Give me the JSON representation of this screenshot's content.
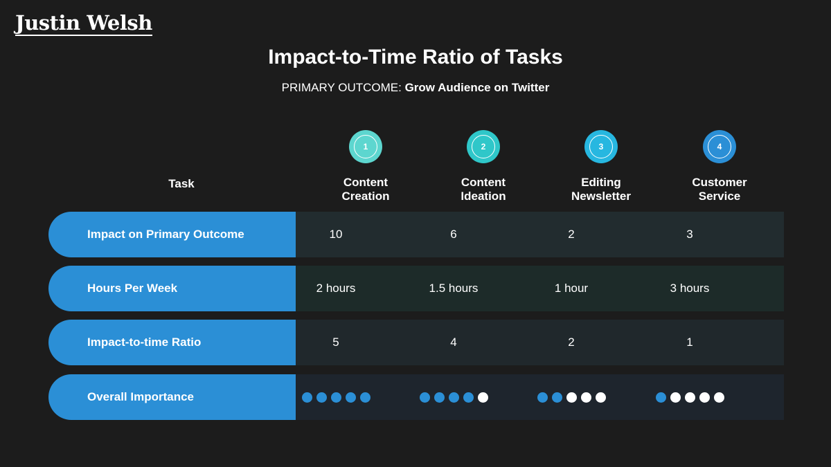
{
  "brand": {
    "logo_text": "Justin Welsh"
  },
  "header": {
    "title": "Impact-to-Time Ratio of Tasks",
    "subtitle_label": "PRIMARY OUTCOME:",
    "subtitle_value": "Grow Audience on Twitter"
  },
  "table": {
    "task_header": "Task",
    "columns": [
      {
        "number": "1",
        "label": "Content\nCreation",
        "badge_color": "#5dd6cf"
      },
      {
        "number": "2",
        "label": "Content\nIdeation",
        "badge_color": "#2fc7c9"
      },
      {
        "number": "3",
        "label": "Editing\nNewsletter",
        "badge_color": "#27b7e0"
      },
      {
        "number": "4",
        "label": "Customer\nService",
        "badge_color": "#2b8fd6"
      }
    ],
    "rows": [
      {
        "label": "Impact on Primary Outcome",
        "bg": "#222c2f",
        "values": [
          "10",
          "6",
          "2",
          "3"
        ]
      },
      {
        "label": "Hours Per Week",
        "bg": "#1d2b29",
        "values": [
          "2 hours",
          "1.5 hours",
          "1 hour",
          "3 hours"
        ]
      },
      {
        "label": "Impact-to-time Ratio",
        "bg": "#20282c",
        "values": [
          "5",
          "4",
          "2",
          "1"
        ]
      }
    ],
    "importance": {
      "label": "Overall Importance",
      "bg": "#1e252d",
      "scale": 5,
      "filled": [
        5,
        4,
        2,
        1
      ],
      "filled_color": "#2b8fd6",
      "empty_color": "#ffffff"
    }
  }
}
